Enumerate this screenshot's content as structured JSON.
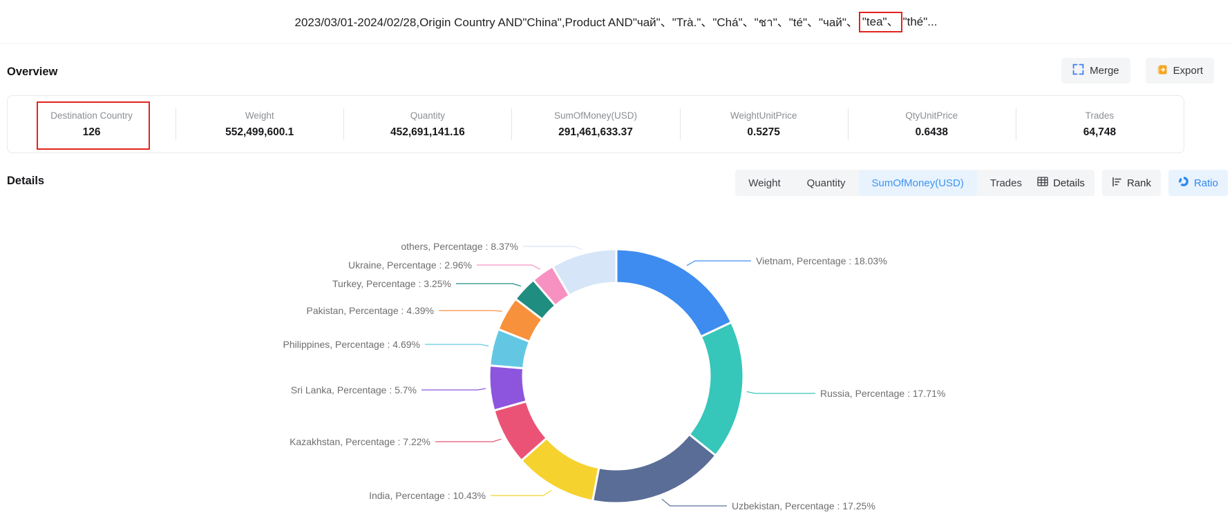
{
  "header": {
    "title_before": "2023/03/01-2024/02/28,Origin Country AND\"China\",Product AND\"чай\"、\"Trà.\"、\"Chá\"、\"ชา\"、\"té\"、\"чай\"、",
    "title_highlight": "\"tea\"、",
    "title_after": "\"thé\"..."
  },
  "overview": {
    "heading": "Overview",
    "merge_label": "Merge",
    "export_label": "Export",
    "stats": [
      {
        "label": "Destination Country",
        "value": "126",
        "highlighted": true
      },
      {
        "label": "Weight",
        "value": "552,499,600.1"
      },
      {
        "label": "Quantity",
        "value": "452,691,141.16"
      },
      {
        "label": "SumOfMoney(USD)",
        "value": "291,461,633.37"
      },
      {
        "label": "WeightUnitPrice",
        "value": "0.5275"
      },
      {
        "label": "QtyUnitPrice",
        "value": "0.6438"
      },
      {
        "label": "Trades",
        "value": "64,748"
      }
    ]
  },
  "details": {
    "heading": "Details",
    "metric_tabs": [
      {
        "label": "Weight",
        "active": false
      },
      {
        "label": "Quantity",
        "active": false
      },
      {
        "label": "SumOfMoney(USD)",
        "active": true
      },
      {
        "label": "Trades",
        "active": false
      }
    ],
    "view_buttons": [
      {
        "label": "Details",
        "icon": "table-icon",
        "active": false
      },
      {
        "label": "Rank",
        "icon": "rank-icon",
        "active": false
      },
      {
        "label": "Ratio",
        "icon": "donut-icon",
        "active": true
      }
    ]
  },
  "chart_data": {
    "type": "pie",
    "subtype": "donut",
    "direction": "clockwise",
    "start_angle": "top",
    "legend": "none",
    "label_sep": ",  Percentage : ",
    "label_suffix": "%",
    "series": [
      {
        "name": "Vietnam",
        "value": 18.03,
        "display": "18.03",
        "color": "#3e8cf0"
      },
      {
        "name": "Russia",
        "value": 17.71,
        "display": "17.71",
        "color": "#36c6ba"
      },
      {
        "name": "Uzbekistan",
        "value": 17.25,
        "display": "17.25",
        "color": "#5a6d96"
      },
      {
        "name": "India",
        "value": 10.43,
        "display": "10.43",
        "color": "#f5d22e"
      },
      {
        "name": "Kazakhstan",
        "value": 7.22,
        "display": "7.22",
        "color": "#eb5376"
      },
      {
        "name": "Sri Lanka",
        "value": 5.7,
        "display": "5.7",
        "color": "#8d55dd"
      },
      {
        "name": "Philippines",
        "value": 4.69,
        "display": "4.69",
        "color": "#63c7e4"
      },
      {
        "name": "Pakistan",
        "value": 4.39,
        "display": "4.39",
        "color": "#f8913c"
      },
      {
        "name": "Turkey",
        "value": 3.25,
        "display": "3.25",
        "color": "#1f8d80"
      },
      {
        "name": "Ukraine",
        "value": 2.96,
        "display": "2.96",
        "color": "#f791c2"
      },
      {
        "name": "others",
        "value": 8.37,
        "display": "8.37",
        "color": "#d7e5f8"
      }
    ]
  },
  "colors": {
    "accent_blue": "#3d93f2",
    "active_tab_bg": "#e8f3fe",
    "button_bg": "#f4f5f6",
    "highlight_red": "#e2231c",
    "export_icon_orange": "#f5a623",
    "text_dark": "#17181a",
    "stat_label_gray": "#8b8e94",
    "chart_label_gray": "#6e6e6e"
  }
}
